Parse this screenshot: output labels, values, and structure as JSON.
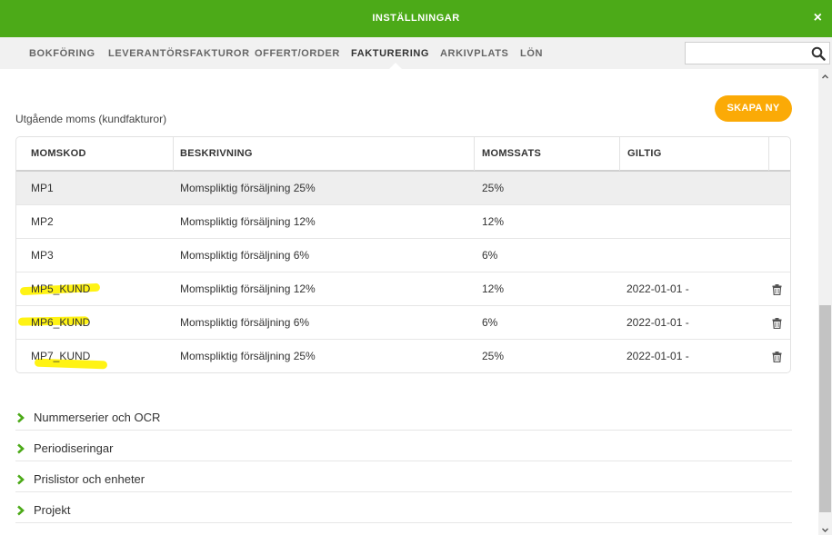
{
  "window": {
    "title": "INSTÄLLNINGAR",
    "close_label": "×"
  },
  "nav": {
    "tabs": [
      {
        "label": "BOKFÖRING"
      },
      {
        "label": "LEVERANTÖRSFAKTUROR"
      },
      {
        "label": "OFFERT/ORDER"
      },
      {
        "label": "FAKTURERING",
        "active": true
      },
      {
        "label": "ARKIVPLATS"
      },
      {
        "label": "LÖN"
      }
    ],
    "search": {
      "value": "",
      "placeholder": ""
    }
  },
  "vat_section": {
    "title": "Utgående moms (kundfakturor)",
    "create_label": "SKAPA NY",
    "columns": [
      "MOMSKOD",
      "BESKRIVNING",
      "MOMSSATS",
      "GILTIG"
    ],
    "rows": [
      {
        "code": "MP1",
        "description": "Momspliktig försäljning 25%",
        "rate": "25%",
        "valid": "",
        "selected": true,
        "deletable": false
      },
      {
        "code": "MP2",
        "description": "Momspliktig försäljning 12%",
        "rate": "12%",
        "valid": "",
        "deletable": false
      },
      {
        "code": "MP3",
        "description": "Momspliktig försäljning 6%",
        "rate": "6%",
        "valid": "",
        "deletable": false
      },
      {
        "code": "MP5_KUND",
        "description": "Momspliktig försäljning 12%",
        "rate": "12%",
        "valid": "2022-01-01 -",
        "deletable": true,
        "highlighted": true
      },
      {
        "code": "MP6_KUND",
        "description": "Momspliktig försäljning 6%",
        "rate": "6%",
        "valid": "2022-01-01 -",
        "deletable": true,
        "highlighted": true
      },
      {
        "code": "MP7_KUND",
        "description": "Momspliktig försäljning 25%",
        "rate": "25%",
        "valid": "2022-01-01 -",
        "deletable": true,
        "highlighted": true
      }
    ]
  },
  "collapsibles": [
    {
      "label": "Nummerserier och OCR"
    },
    {
      "label": "Periodiseringar"
    },
    {
      "label": "Prislistor och enheter"
    },
    {
      "label": "Projekt"
    }
  ],
  "colors": {
    "header_green": "#4caa18",
    "accent_orange": "#fbaa06",
    "highlighter": "#fff200",
    "chevron_green": "#4caa18"
  },
  "icons": {
    "search": "search-icon",
    "close": "close-icon",
    "trash": "trash-icon",
    "chevron": "chevron-right-icon"
  }
}
